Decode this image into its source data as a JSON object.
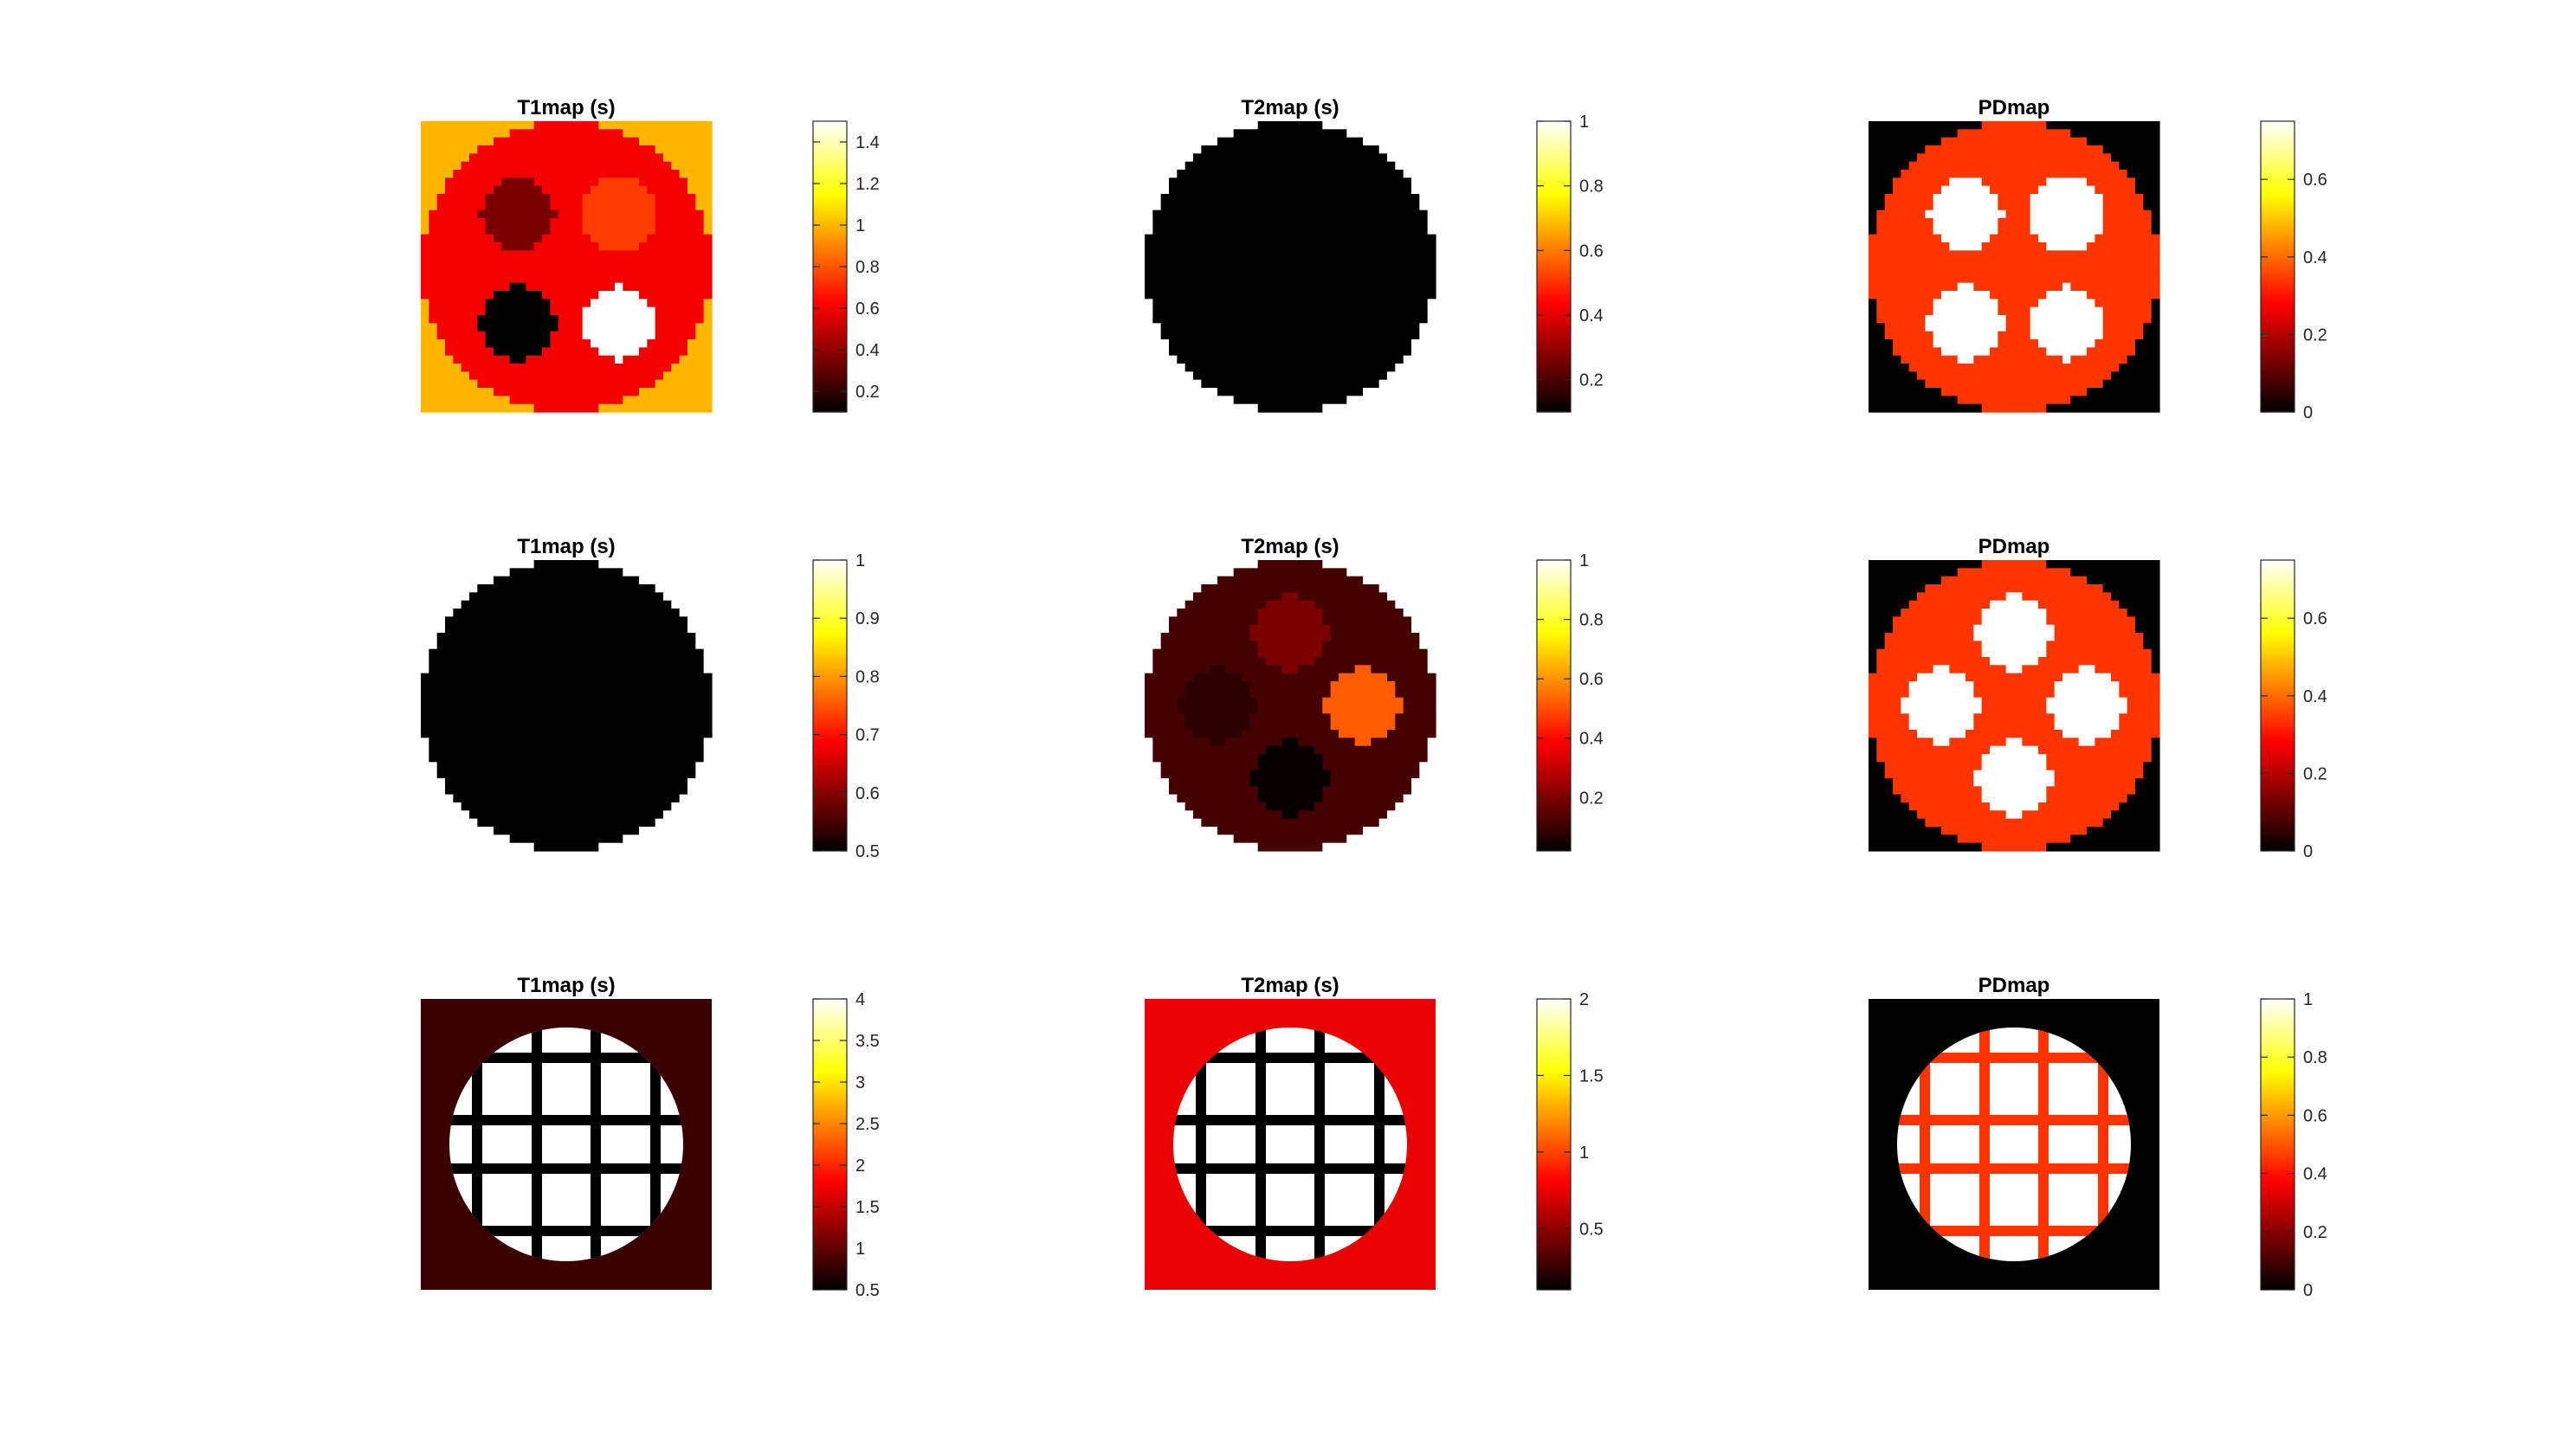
{
  "colormap": "hot",
  "colormap_stops": [
    "#000000",
    "#ff0000",
    "#ffff00",
    "#ffffff"
  ],
  "chart_data": [
    {
      "type": "heatmap",
      "title": "T1map (s)",
      "colorbar": {
        "min": 0.1,
        "max": 1.5,
        "ticks": [
          "0.2",
          "0.4",
          "0.6",
          "0.8",
          "1",
          "1.2",
          "1.4"
        ],
        "tick_values": [
          0.2,
          0.4,
          0.6,
          0.8,
          1,
          1.2,
          1.4
        ]
      },
      "phantom": {
        "shape": "disk_four_spots_grid",
        "background": 1.0,
        "disk": 0.6,
        "spots": [
          0.35,
          0.75,
          0.1,
          1.5
        ]
      }
    },
    {
      "type": "heatmap",
      "title": "T2map (s)",
      "colorbar": {
        "min": 0.1,
        "max": 1.0,
        "ticks": [
          "0.2",
          "0.4",
          "0.6",
          "0.8",
          "1"
        ],
        "tick_values": [
          0.2,
          0.4,
          0.6,
          0.8,
          1
        ]
      },
      "phantom": {
        "shape": "disk_plain",
        "background": 1.0,
        "disk": 0.1
      }
    },
    {
      "type": "heatmap",
      "title": "PDmap",
      "colorbar": {
        "min": 0,
        "max": 0.75,
        "ticks": [
          "0",
          "0.2",
          "0.4",
          "0.6"
        ],
        "tick_values": [
          0,
          0.2,
          0.4,
          0.6
        ]
      },
      "phantom": {
        "shape": "disk_four_spots_grid",
        "background": 0,
        "disk": 0.34,
        "spots": [
          0.75,
          0.75,
          0.75,
          0.75
        ]
      }
    },
    {
      "type": "heatmap",
      "title": "T1map (s)",
      "colorbar": {
        "min": 0.5,
        "max": 1.0,
        "ticks": [
          "0.5",
          "0.6",
          "0.7",
          "0.8",
          "0.9",
          "1"
        ],
        "tick_values": [
          0.5,
          0.6,
          0.7,
          0.8,
          0.9,
          1
        ]
      },
      "phantom": {
        "shape": "disk_plain",
        "background": 1.0,
        "disk": 0.5
      }
    },
    {
      "type": "heatmap",
      "title": "T2map (s)",
      "colorbar": {
        "min": 0.02,
        "max": 1.0,
        "ticks": [
          "0.2",
          "0.4",
          "0.6",
          "0.8",
          "1"
        ],
        "tick_values": [
          0.2,
          0.4,
          0.6,
          0.8,
          1
        ]
      },
      "phantom": {
        "shape": "disk_four_spots_diamond",
        "background": 1.0,
        "disk": 0.12,
        "spots": [
          0.2,
          0.08,
          0.52,
          0.03
        ]
      }
    },
    {
      "type": "heatmap",
      "title": "PDmap",
      "colorbar": {
        "min": 0,
        "max": 0.75,
        "ticks": [
          "0",
          "0.2",
          "0.4",
          "0.6"
        ],
        "tick_values": [
          0,
          0.2,
          0.4,
          0.6
        ]
      },
      "phantom": {
        "shape": "disk_four_spots_diamond",
        "background": 0,
        "disk": 0.34,
        "spots": [
          0.75,
          0.75,
          0.75,
          0.75
        ]
      }
    },
    {
      "type": "heatmap",
      "title": "T1map (s)",
      "colorbar": {
        "min": 0.5,
        "max": 4.0,
        "ticks": [
          "0.5",
          "1",
          "1.5",
          "2",
          "2.5",
          "3",
          "3.5",
          "4"
        ],
        "tick_values": [
          0.5,
          1,
          1.5,
          2,
          2.5,
          3,
          3.5,
          4
        ]
      },
      "phantom": {
        "shape": "disk_grid",
        "background": 0.8,
        "disk": 4.0,
        "grid": 0.5
      }
    },
    {
      "type": "heatmap",
      "title": "T2map (s)",
      "colorbar": {
        "min": 0.1,
        "max": 2.0,
        "ticks": [
          "0.5",
          "1",
          "1.5",
          "2"
        ],
        "tick_values": [
          0.5,
          1,
          1.5,
          2
        ]
      },
      "phantom": {
        "shape": "disk_grid",
        "background": 0.75,
        "disk": 2.0,
        "grid": 0.1
      }
    },
    {
      "type": "heatmap",
      "title": "PDmap",
      "colorbar": {
        "min": 0,
        "max": 1.0,
        "ticks": [
          "0",
          "0.2",
          "0.4",
          "0.6",
          "0.8",
          "1"
        ],
        "tick_values": [
          0,
          0.2,
          0.4,
          0.6,
          0.8,
          1
        ]
      },
      "phantom": {
        "shape": "disk_grid",
        "background": 0,
        "disk": 1.0,
        "grid": 0.45
      }
    }
  ]
}
